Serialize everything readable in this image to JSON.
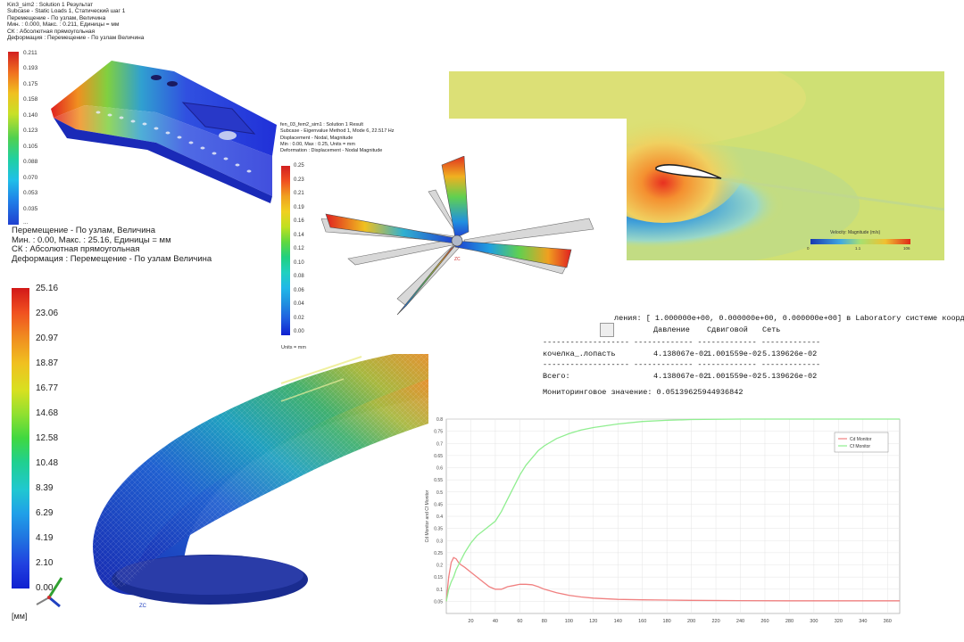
{
  "panel_bracket": {
    "header": [
      "Kin3_sim2 : Solution 1 Результат",
      "Subcase - Static Loads 1, Статический шаг 1",
      "Перемещение - По узлам, Величина",
      "Мин. : 0.000, Макс. : 0.211, Единицы = мм",
      "СК : Абсолютная прямоугольная",
      "Деформация : Перемещение - По узлам Величина"
    ],
    "colorbar_labels": [
      "0.211",
      "0.193",
      "0.175",
      "0.158",
      "0.140",
      "0.123",
      "0.105",
      "0.088",
      "0.070",
      "0.053",
      "0.035",
      "..."
    ]
  },
  "panel_rotor": {
    "header": [
      "fen_03_fem2_sim1 : Solution 1 Result",
      "Subcase - Eigenvalue Method 1, Mode 6, 22.517 Hz",
      "Displacement - Nodal, Magnitude",
      "Min : 0.00, Max : 0.25, Units = mm",
      "Deformation : Displacement - Nodal Magnitude"
    ],
    "colorbar_labels": [
      "0.25",
      "0.23",
      "0.21",
      "0.19",
      "0.16",
      "0.14",
      "0.12",
      "0.10",
      "0.08",
      "0.06",
      "0.04",
      "0.02",
      "0.00"
    ],
    "units": "Units = mm",
    "axis_label": "ZC"
  },
  "panel_airfoil": {
    "legend_title": "Velocity: Magnitude (m/s)",
    "legend_ticks": [
      "0",
      "",
      "1.1",
      "",
      "106"
    ]
  },
  "panel_loop": {
    "header": [
      "Перемещение - По узлам, Величина",
      "Мин. : 0.00, Макс. : 25.16, Единицы = мм",
      "СК : Абсолютная прямоугольная",
      "Деформация : Перемещение - По узлам Величина"
    ],
    "colorbar_labels": [
      "25.16",
      "23.06",
      "20.97",
      "18.87",
      "16.77",
      "14.68",
      "12.58",
      "10.48",
      "8.39",
      "6.29",
      "4.19",
      "2.10",
      "0.00"
    ],
    "units": "[мм]",
    "axis_label": "ZC"
  },
  "panel_report": {
    "line1": "ления: [ 1.000000e+00,  0.000000e+00,  0.000000e+00] в Laboratory системе координат",
    "headers": [
      "Давление",
      "Сдвиговой",
      "Сеть"
    ],
    "dash_line": "------------------- ------------- ------------- -------------",
    "row": {
      "name": "кочелка_.лопасть",
      "values": [
        "4.138067e-02",
        "1.001559e-02",
        "5.139626e-02"
      ]
    },
    "dash_line2": "------------------- ------------- ------------- -------------",
    "total": {
      "name": "Всего:",
      "values": [
        "4.138067e-02",
        "1.001559e-02",
        "5.139626e-02"
      ]
    },
    "monitor": "Мониторинговое значение: 0.05139625944936842"
  },
  "chart_data": {
    "type": "line",
    "title": "",
    "xlabel": "",
    "ylabel": "Cd Monitor and Cf Monitor",
    "xlim": [
      0,
      370
    ],
    "ylim": [
      0,
      0.8
    ],
    "xticks": [
      20,
      40,
      60,
      80,
      100,
      120,
      140,
      160,
      180,
      200,
      220,
      240,
      260,
      280,
      300,
      320,
      340,
      360
    ],
    "yticks": [
      0.05,
      0.1,
      0.15,
      0.2,
      0.25,
      0.3,
      0.35,
      0.4,
      0.45,
      0.5,
      0.55,
      0.6,
      0.65,
      0.7,
      0.75,
      0.8
    ],
    "legend_position": "top-right",
    "series": [
      {
        "name": "Cd Monitor",
        "color": "#f08080",
        "x": [
          0,
          2,
          4,
          6,
          8,
          10,
          12,
          15,
          20,
          25,
          30,
          35,
          40,
          45,
          50,
          55,
          60,
          65,
          70,
          75,
          80,
          90,
          100,
          110,
          120,
          140,
          160,
          180,
          200,
          240,
          280,
          320,
          370
        ],
        "y": [
          0.05,
          0.15,
          0.21,
          0.23,
          0.225,
          0.21,
          0.2,
          0.19,
          0.17,
          0.15,
          0.13,
          0.11,
          0.1,
          0.1,
          0.11,
          0.115,
          0.12,
          0.12,
          0.118,
          0.11,
          0.1,
          0.085,
          0.075,
          0.068,
          0.063,
          0.058,
          0.056,
          0.055,
          0.054,
          0.053,
          0.052,
          0.052,
          0.052
        ]
      },
      {
        "name": "Cf Monitor",
        "color": "#90ee90",
        "x": [
          0,
          2,
          4,
          6,
          8,
          10,
          15,
          20,
          25,
          30,
          35,
          40,
          45,
          50,
          55,
          60,
          65,
          70,
          75,
          80,
          90,
          100,
          110,
          120,
          140,
          160,
          180,
          200,
          240,
          280,
          320,
          370
        ],
        "y": [
          0.05,
          0.1,
          0.13,
          0.15,
          0.18,
          0.2,
          0.25,
          0.29,
          0.32,
          0.34,
          0.36,
          0.38,
          0.42,
          0.47,
          0.52,
          0.57,
          0.61,
          0.64,
          0.67,
          0.69,
          0.72,
          0.74,
          0.755,
          0.765,
          0.78,
          0.79,
          0.795,
          0.798,
          0.8,
          0.8,
          0.8,
          0.8
        ]
      }
    ]
  }
}
